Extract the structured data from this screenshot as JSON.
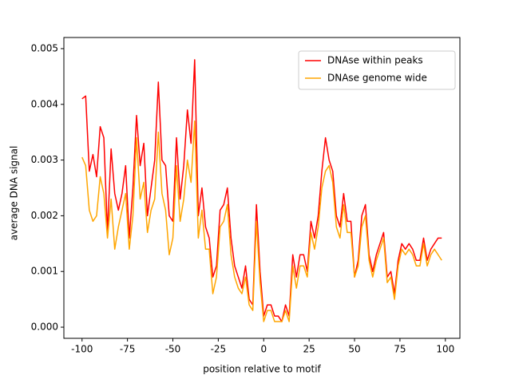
{
  "chart_data": {
    "type": "line",
    "xlabel": "position relative to motif",
    "ylabel": "average DNA signal",
    "x": [
      -100,
      -98,
      -96,
      -94,
      -92,
      -90,
      -88,
      -86,
      -84,
      -82,
      -80,
      -78,
      -76,
      -74,
      -72,
      -70,
      -68,
      -66,
      -64,
      -62,
      -60,
      -58,
      -56,
      -54,
      -52,
      -50,
      -48,
      -46,
      -44,
      -42,
      -40,
      -38,
      -36,
      -34,
      -32,
      -30,
      -28,
      -26,
      -24,
      -22,
      -20,
      -18,
      -16,
      -14,
      -12,
      -10,
      -8,
      -6,
      -4,
      -2,
      0,
      2,
      4,
      6,
      8,
      10,
      12,
      14,
      16,
      18,
      20,
      22,
      24,
      26,
      28,
      30,
      32,
      34,
      36,
      38,
      40,
      42,
      44,
      46,
      48,
      50,
      52,
      54,
      56,
      58,
      60,
      62,
      64,
      66,
      68,
      70,
      72,
      74,
      76,
      78,
      80,
      82,
      84,
      86,
      88,
      90,
      92,
      94,
      96,
      98
    ],
    "series": [
      {
        "name": "DNAse within peaks",
        "color": "#ff0000",
        "values": [
          0.0041,
          0.00415,
          0.0028,
          0.0031,
          0.0027,
          0.0036,
          0.0034,
          0.0017,
          0.0032,
          0.0024,
          0.0021,
          0.0024,
          0.0029,
          0.0016,
          0.0025,
          0.0038,
          0.0029,
          0.0033,
          0.002,
          0.0025,
          0.003,
          0.0044,
          0.003,
          0.0029,
          0.002,
          0.0019,
          0.0034,
          0.0023,
          0.0029,
          0.0039,
          0.0033,
          0.0048,
          0.002,
          0.0025,
          0.0018,
          0.0016,
          0.0009,
          0.0011,
          0.0021,
          0.0022,
          0.0025,
          0.0016,
          0.0011,
          0.0009,
          0.0007,
          0.0011,
          0.0005,
          0.0004,
          0.0022,
          0.001,
          0.0002,
          0.0004,
          0.0004,
          0.0002,
          0.0002,
          0.0001,
          0.0004,
          0.0002,
          0.0013,
          0.0009,
          0.0013,
          0.0013,
          0.001,
          0.0019,
          0.0016,
          0.002,
          0.0028,
          0.0034,
          0.003,
          0.0028,
          0.002,
          0.0018,
          0.0024,
          0.0019,
          0.0019,
          0.0009,
          0.0012,
          0.002,
          0.0022,
          0.0013,
          0.001,
          0.0013,
          0.0015,
          0.0017,
          0.0009,
          0.001,
          0.0006,
          0.0012,
          0.0015,
          0.0014,
          0.0015,
          0.0014,
          0.0012,
          0.0012,
          0.0016,
          0.0012,
          0.0014,
          0.0015,
          0.0016,
          0.0016
        ]
      },
      {
        "name": "DNAse genome wide",
        "color": "#ffa500",
        "values": [
          0.00305,
          0.0029,
          0.0021,
          0.0019,
          0.002,
          0.0027,
          0.0024,
          0.0016,
          0.0023,
          0.0014,
          0.0018,
          0.0021,
          0.0024,
          0.0014,
          0.002,
          0.0034,
          0.0023,
          0.0026,
          0.0017,
          0.0021,
          0.0023,
          0.0035,
          0.0024,
          0.0021,
          0.0013,
          0.0016,
          0.0029,
          0.0019,
          0.0023,
          0.003,
          0.0026,
          0.0037,
          0.0016,
          0.0021,
          0.0014,
          0.0014,
          0.0006,
          0.0009,
          0.0018,
          0.0019,
          0.0022,
          0.0013,
          0.0009,
          0.0007,
          0.0006,
          0.0009,
          0.0004,
          0.0003,
          0.0019,
          0.0008,
          0.0001,
          0.0003,
          0.0003,
          0.0001,
          0.0001,
          0.0001,
          0.0003,
          0.0001,
          0.0011,
          0.0007,
          0.0011,
          0.0011,
          0.0009,
          0.0017,
          0.0014,
          0.0018,
          0.0025,
          0.0028,
          0.0029,
          0.0026,
          0.0018,
          0.0016,
          0.0022,
          0.0017,
          0.0017,
          0.0009,
          0.0011,
          0.0018,
          0.002,
          0.0012,
          0.0009,
          0.0012,
          0.0014,
          0.0016,
          0.0008,
          0.0009,
          0.0005,
          0.0011,
          0.0014,
          0.0013,
          0.0014,
          0.0013,
          0.0011,
          0.0011,
          0.0015,
          0.0011,
          0.0013,
          0.0014,
          0.0013,
          0.0012
        ]
      }
    ],
    "xlim": [
      -110,
      108
    ],
    "ylim": [
      -0.0002,
      0.0052
    ],
    "xticks": [
      -100,
      -75,
      -50,
      -25,
      0,
      25,
      50,
      75,
      100
    ],
    "yticks": [
      {
        "value": 0,
        "label": "0.000"
      },
      0.001,
      0.002,
      0.003,
      0.004,
      0.005
    ],
    "legend": "upper right"
  }
}
